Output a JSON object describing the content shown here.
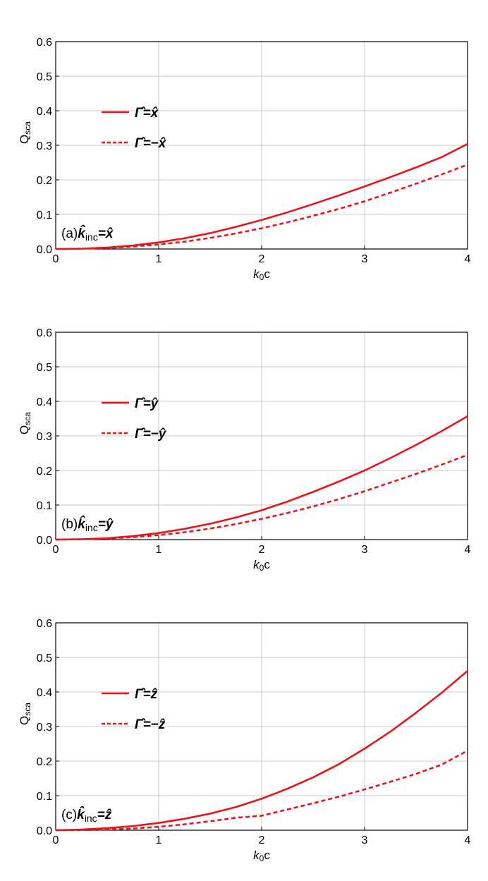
{
  "chart_data": [
    {
      "type": "line",
      "panel_label": "(a)",
      "annotation": {
        "k": "k̂",
        "sub": "inc",
        "rhs": "=x̂"
      },
      "xlabel": {
        "main": "k",
        "sub": "0",
        "rest": "c"
      },
      "ylabel": {
        "main": "Q",
        "sub": "sca"
      },
      "xlim": [
        0,
        4
      ],
      "ylim": [
        0,
        0.6
      ],
      "xticks": [
        "0",
        "1",
        "2",
        "3",
        "4"
      ],
      "yticks": [
        "0.0",
        "0.1",
        "0.2",
        "0.3",
        "0.4",
        "0.5",
        "0.6"
      ],
      "grid": true,
      "legend_position": "upper-left",
      "color": "#e8151b",
      "x": [
        0,
        0.25,
        0.5,
        0.75,
        1,
        1.25,
        1.5,
        1.75,
        2,
        2.25,
        2.5,
        2.75,
        3,
        3.25,
        3.5,
        3.75,
        4
      ],
      "series": [
        {
          "name": "Γ̂=x̂",
          "style": "solid",
          "values": [
            0,
            0.001,
            0.004,
            0.01,
            0.019,
            0.031,
            0.046,
            0.064,
            0.084,
            0.106,
            0.13,
            0.155,
            0.181,
            0.208,
            0.236,
            0.266,
            0.304
          ]
        },
        {
          "name": "Γ̂=−x̂",
          "style": "dashed",
          "values": [
            0,
            0.001,
            0.003,
            0.007,
            0.013,
            0.021,
            0.032,
            0.045,
            0.06,
            0.077,
            0.096,
            0.116,
            0.138,
            0.163,
            0.189,
            0.216,
            0.244
          ]
        }
      ]
    },
    {
      "type": "line",
      "panel_label": "(b)",
      "annotation": {
        "k": "k̂",
        "sub": "inc",
        "rhs": "=ŷ"
      },
      "xlabel": {
        "main": "k",
        "sub": "0",
        "rest": "c"
      },
      "ylabel": {
        "main": "Q",
        "sub": "sca"
      },
      "xlim": [
        0,
        4
      ],
      "ylim": [
        0,
        0.6
      ],
      "xticks": [
        "0",
        "1",
        "2",
        "3",
        "4"
      ],
      "yticks": [
        "0.0",
        "0.1",
        "0.2",
        "0.3",
        "0.4",
        "0.5",
        "0.6"
      ],
      "grid": true,
      "legend_position": "upper-left",
      "color": "#e8151b",
      "x": [
        0,
        0.25,
        0.5,
        0.75,
        1,
        1.25,
        1.5,
        1.75,
        2,
        2.25,
        2.5,
        2.75,
        3,
        3.25,
        3.5,
        3.75,
        4
      ],
      "series": [
        {
          "name": "Γ̂=ŷ",
          "style": "solid",
          "values": [
            0,
            0.001,
            0.004,
            0.01,
            0.019,
            0.031,
            0.046,
            0.064,
            0.085,
            0.11,
            0.138,
            0.168,
            0.2,
            0.236,
            0.274,
            0.314,
            0.357
          ]
        },
        {
          "name": "Γ̂=−ŷ",
          "style": "dashed",
          "values": [
            0,
            0.001,
            0.003,
            0.007,
            0.013,
            0.021,
            0.032,
            0.045,
            0.06,
            0.077,
            0.096,
            0.117,
            0.14,
            0.165,
            0.19,
            0.217,
            0.245
          ]
        }
      ]
    },
    {
      "type": "line",
      "panel_label": "(c)",
      "annotation": {
        "k": "k̂",
        "sub": "inc",
        "rhs": "=ẑ"
      },
      "xlabel": {
        "main": "k",
        "sub": "0",
        "rest": "c"
      },
      "ylabel": {
        "main": "Q",
        "sub": "sca"
      },
      "xlim": [
        0,
        4
      ],
      "ylim": [
        0,
        0.6
      ],
      "xticks": [
        "0",
        "1",
        "2",
        "3",
        "4"
      ],
      "yticks": [
        "0.0",
        "0.1",
        "0.2",
        "0.3",
        "0.4",
        "0.5",
        "0.6"
      ],
      "grid": true,
      "legend_position": "upper-left",
      "color": "#e8151b",
      "x": [
        0,
        0.25,
        0.5,
        0.75,
        1,
        1.25,
        1.5,
        1.75,
        2,
        2.25,
        2.5,
        2.75,
        3,
        3.25,
        3.5,
        3.75,
        4
      ],
      "series": [
        {
          "name": "Γ̂=ẑ",
          "style": "solid",
          "values": [
            0,
            0.002,
            0.006,
            0.012,
            0.021,
            0.033,
            0.048,
            0.067,
            0.091,
            0.12,
            0.153,
            0.191,
            0.236,
            0.285,
            0.34,
            0.398,
            0.461
          ]
        },
        {
          "name": "Γ̂=−ẑ",
          "style": "dashed",
          "values": [
            0,
            0.0005,
            0.002,
            0.005,
            0.01,
            0.017,
            0.026,
            0.036,
            0.042,
            0.06,
            0.078,
            0.097,
            0.118,
            0.14,
            0.163,
            0.19,
            0.23
          ]
        }
      ]
    }
  ]
}
